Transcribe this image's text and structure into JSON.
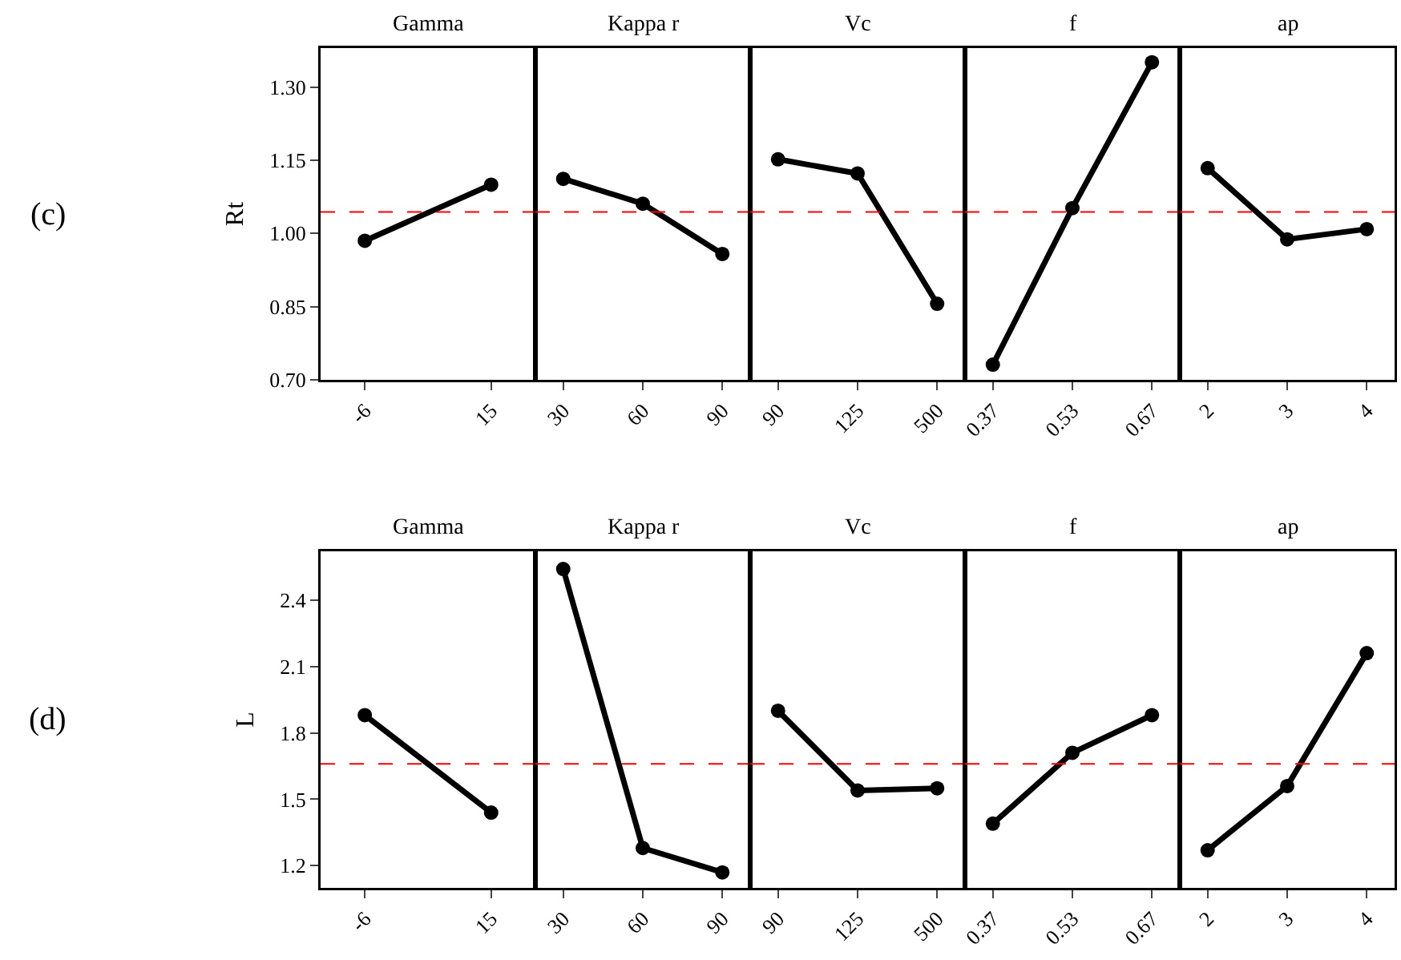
{
  "chart_data": [
    {
      "type": "line",
      "title": "Gamma",
      "ylabel": "Rt",
      "annotations": [
        "(c)"
      ],
      "categories": [
        "-6",
        "15"
      ],
      "values": [
        0.985,
        1.1
      ],
      "ylim": [
        0.7,
        1.38
      ],
      "yticks": [
        {
          "value": 0.7,
          "label": "0.70"
        },
        0.85,
        {
          "value": 1.0,
          "label": "1.00"
        },
        1.15,
        {
          "value": 1.3,
          "label": "1.30"
        }
      ],
      "ref_lines": [
        {
          "axis": "y",
          "value": 1.044,
          "color": "#ff0000",
          "line_style": "dashed"
        }
      ],
      "color": "#000000",
      "marker": "circle",
      "line_style": "solid"
    },
    {
      "type": "line",
      "title": "Kappa r",
      "categories": [
        "30",
        "60",
        "90"
      ],
      "values": [
        1.112,
        1.061,
        0.958
      ],
      "ylim": [
        0.7,
        1.38
      ],
      "tick_labels": "x",
      "ref_lines": [
        {
          "axis": "y",
          "value": 1.044,
          "color": "#ff0000",
          "line_style": "dashed"
        }
      ],
      "color": "#000000",
      "marker": "circle",
      "line_style": "solid"
    },
    {
      "type": "line",
      "title": "Vc",
      "categories": [
        "90",
        "125",
        "500"
      ],
      "values": [
        1.152,
        1.123,
        0.856
      ],
      "ylim": [
        0.7,
        1.38
      ],
      "tick_labels": "x",
      "ref_lines": [
        {
          "axis": "y",
          "value": 1.044,
          "color": "#ff0000",
          "line_style": "dashed"
        }
      ],
      "color": "#000000",
      "marker": "circle",
      "line_style": "solid"
    },
    {
      "type": "line",
      "title": "f",
      "categories": [
        "0.37",
        "0.53",
        "0.67"
      ],
      "values": [
        0.731,
        1.052,
        1.351
      ],
      "ylim": [
        0.7,
        1.38
      ],
      "tick_labels": "x",
      "ref_lines": [
        {
          "axis": "y",
          "value": 1.044,
          "color": "#ff0000",
          "line_style": "dashed"
        }
      ],
      "color": "#000000",
      "marker": "circle",
      "line_style": "solid"
    },
    {
      "type": "line",
      "title": "ap",
      "categories": [
        "2",
        "3",
        "4"
      ],
      "values": [
        1.134,
        0.988,
        1.009
      ],
      "ylim": [
        0.7,
        1.38
      ],
      "tick_labels": "x",
      "ref_lines": [
        {
          "axis": "y",
          "value": 1.044,
          "color": "#ff0000",
          "line_style": "dashed"
        }
      ],
      "color": "#000000",
      "marker": "circle",
      "line_style": "solid"
    },
    {
      "type": "line",
      "title": "Gamma",
      "ylabel": "L",
      "annotations": [
        "(d)"
      ],
      "categories": [
        "-6",
        "15"
      ],
      "values": [
        1.88,
        1.44
      ],
      "ylim": [
        1.1,
        2.62
      ],
      "yticks": [
        1.2,
        1.5,
        1.8,
        2.1,
        2.4
      ],
      "ref_lines": [
        {
          "axis": "y",
          "value": 1.66,
          "color": "#ff0000",
          "line_style": "dashed"
        }
      ],
      "color": "#000000",
      "marker": "circle",
      "line_style": "solid"
    },
    {
      "type": "line",
      "title": "Kappa r",
      "categories": [
        "30",
        "60",
        "90"
      ],
      "values": [
        2.54,
        1.28,
        1.17
      ],
      "ylim": [
        1.1,
        2.62
      ],
      "tick_labels": "x",
      "ref_lines": [
        {
          "axis": "y",
          "value": 1.66,
          "color": "#ff0000",
          "line_style": "dashed"
        }
      ],
      "color": "#000000",
      "marker": "circle",
      "line_style": "solid"
    },
    {
      "type": "line",
      "title": "Vc",
      "categories": [
        "90",
        "125",
        "500"
      ],
      "values": [
        1.9,
        1.54,
        1.55
      ],
      "ylim": [
        1.1,
        2.62
      ],
      "tick_labels": "x",
      "ref_lines": [
        {
          "axis": "y",
          "value": 1.66,
          "color": "#ff0000",
          "line_style": "dashed"
        }
      ],
      "color": "#000000",
      "marker": "circle",
      "line_style": "solid"
    },
    {
      "type": "line",
      "title": "f",
      "categories": [
        "0.37",
        "0.53",
        "0.67"
      ],
      "values": [
        1.39,
        1.71,
        1.88
      ],
      "ylim": [
        1.1,
        2.62
      ],
      "tick_labels": "x",
      "ref_lines": [
        {
          "axis": "y",
          "value": 1.66,
          "color": "#ff0000",
          "line_style": "dashed"
        }
      ],
      "color": "#000000",
      "marker": "circle",
      "line_style": "solid"
    },
    {
      "type": "line",
      "title": "ap",
      "categories": [
        "2",
        "3",
        "4"
      ],
      "values": [
        1.27,
        1.56,
        2.16
      ],
      "ylim": [
        1.1,
        2.62
      ],
      "tick_labels": "x",
      "ref_lines": [
        {
          "axis": "y",
          "value": 1.66,
          "color": "#ff0000",
          "line_style": "dashed"
        }
      ],
      "color": "#000000",
      "marker": "circle",
      "line_style": "solid"
    }
  ]
}
